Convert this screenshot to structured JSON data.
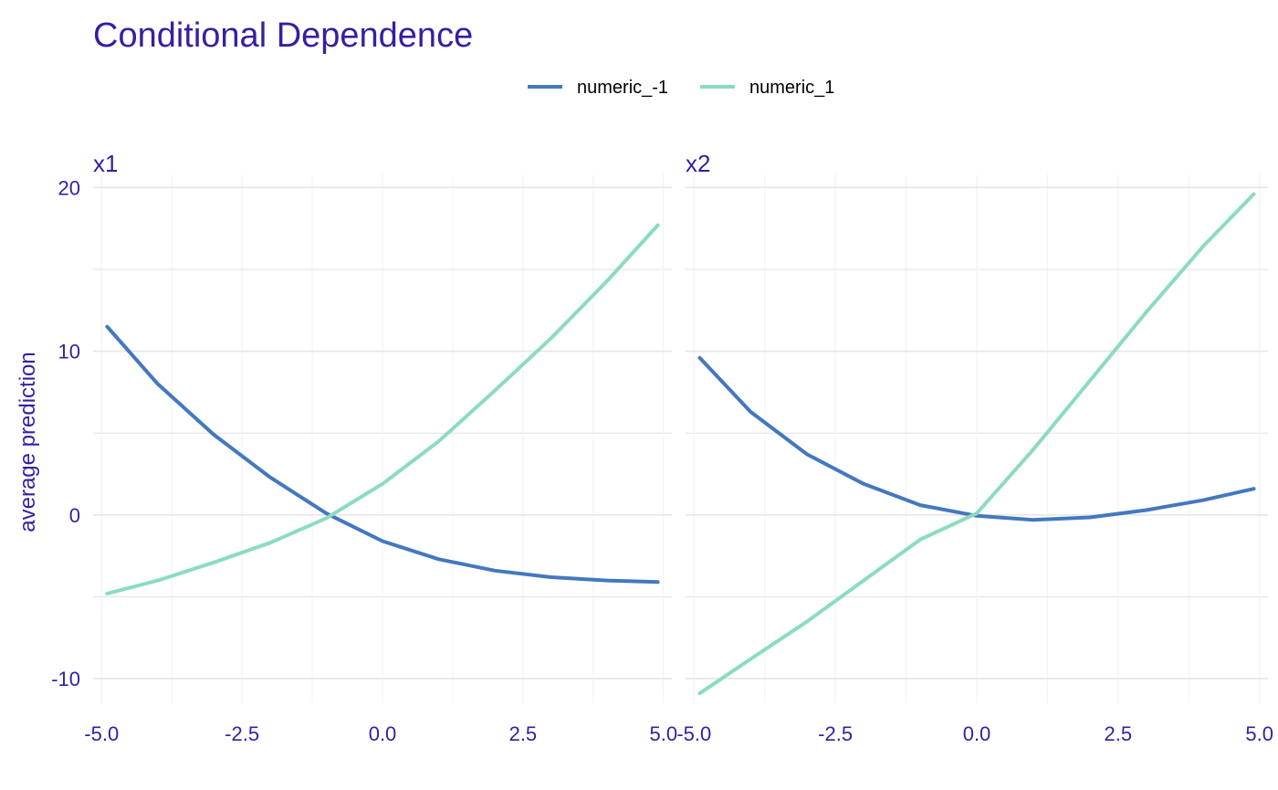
{
  "chart_data": {
    "type": "line",
    "title": "Conditional Dependence",
    "ylabel": "average prediction",
    "xlabel": "",
    "legend_position": "top",
    "grid": true,
    "colors": {
      "text": "#371ea3",
      "grid_major": "#e6e6e6",
      "grid_minor": "#f2f2f2"
    },
    "series_styles": [
      {
        "name": "numeric_-1",
        "color": "#4378bf"
      },
      {
        "name": "numeric_1",
        "color": "#8bdcbe"
      }
    ],
    "xlim": [
      -5.15,
      5.15
    ],
    "ylim": [
      -11.5,
      20.8
    ],
    "x_ticks": [
      -5.0,
      -2.5,
      0.0,
      2.5,
      5.0
    ],
    "x_tick_labels": [
      "-5.0",
      "-2.5",
      "0.0",
      "2.5",
      "5.0"
    ],
    "y_ticks": [
      -10,
      0,
      10,
      20
    ],
    "y_tick_labels": [
      "-10",
      "0",
      "10",
      "20"
    ],
    "panels": [
      {
        "facet": "x1",
        "series": [
          {
            "name": "numeric_-1",
            "x": [
              -4.9,
              -4.0,
              -3.0,
              -2.0,
              -1.0,
              0.0,
              1.0,
              2.0,
              3.0,
              4.0,
              4.9
            ],
            "y": [
              11.5,
              8.0,
              4.9,
              2.3,
              0.1,
              -1.6,
              -2.7,
              -3.4,
              -3.8,
              -4.0,
              -4.1
            ]
          },
          {
            "name": "numeric_1",
            "x": [
              -4.9,
              -4.0,
              -3.0,
              -2.0,
              -1.0,
              0.0,
              1.0,
              2.0,
              3.0,
              4.0,
              4.9
            ],
            "y": [
              -4.8,
              -4.0,
              -2.9,
              -1.7,
              -0.2,
              1.9,
              4.5,
              7.6,
              10.8,
              14.3,
              17.7
            ]
          }
        ]
      },
      {
        "facet": "x2",
        "series": [
          {
            "name": "numeric_-1",
            "x": [
              -4.9,
              -4.0,
              -3.0,
              -2.0,
              -1.0,
              0.0,
              1.0,
              2.0,
              3.0,
              4.0,
              4.9
            ],
            "y": [
              9.6,
              6.3,
              3.7,
              1.9,
              0.6,
              -0.05,
              -0.3,
              -0.15,
              0.3,
              0.9,
              1.6
            ]
          },
          {
            "name": "numeric_1",
            "x": [
              -4.9,
              -4.0,
              -3.0,
              -2.0,
              -1.0,
              0.0,
              1.0,
              2.0,
              3.0,
              4.0,
              4.9
            ],
            "y": [
              -10.9,
              -8.8,
              -6.5,
              -4.0,
              -1.5,
              0.1,
              4.0,
              8.2,
              12.4,
              16.4,
              19.6
            ]
          }
        ]
      }
    ]
  }
}
